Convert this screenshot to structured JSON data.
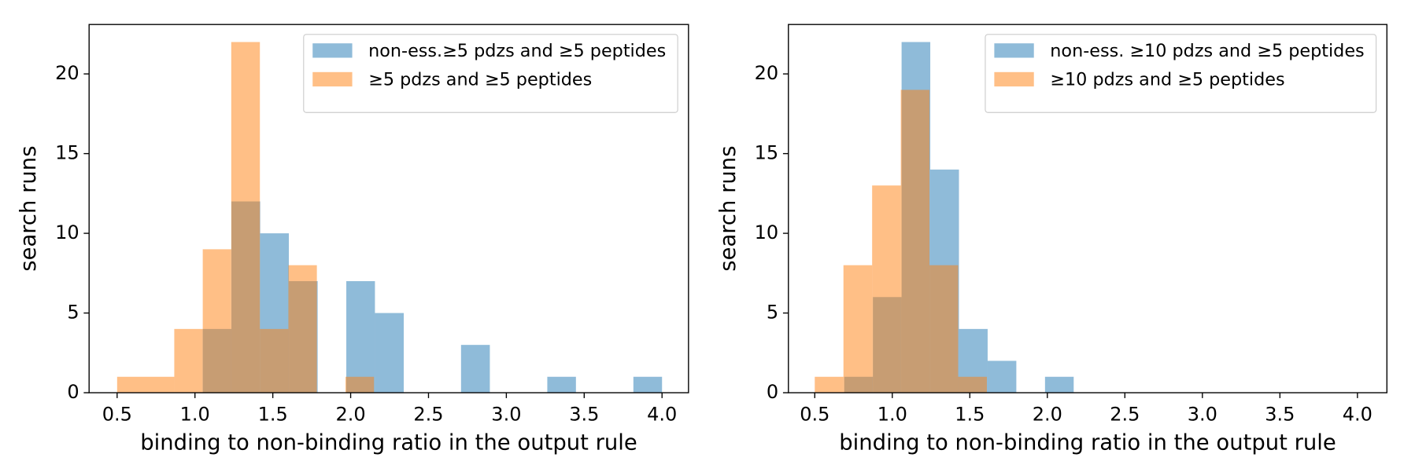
{
  "chart_data": [
    {
      "type": "histogram",
      "xlabel": "binding to non-binding ratio in the output rule",
      "ylabel": "search runs",
      "xlim": [
        0.32,
        4.17
      ],
      "ylim": [
        0,
        23.1
      ],
      "xticks": [
        {
          "value": 0.5,
          "label": "0.5"
        },
        {
          "value": 1.0,
          "label": "1.0"
        },
        {
          "value": 1.5,
          "label": "1.5"
        },
        {
          "value": 2.0,
          "label": "2.0"
        },
        {
          "value": 2.5,
          "label": "2.5"
        },
        {
          "value": 3.0,
          "label": "3.0"
        },
        {
          "value": 3.5,
          "label": "3.5"
        },
        {
          "value": 4.0,
          "label": "4.0"
        }
      ],
      "yticks": [
        0,
        5,
        10,
        15,
        20
      ],
      "legend": "upper right",
      "alpha": 0.5,
      "series": [
        {
          "name": "non-ess.≥5 pdzs and ≥5 peptides",
          "color": "#1f77b4",
          "bins": [
            1.05,
            1.234,
            1.419,
            1.603,
            1.788,
            1.972,
            2.156,
            2.341,
            2.525,
            2.709,
            2.894,
            3.078,
            3.263,
            3.447,
            3.631,
            3.816,
            4.0
          ],
          "values": [
            4,
            12,
            10,
            7,
            0,
            7,
            5,
            0,
            0,
            3,
            0,
            0,
            1,
            0,
            0,
            1
          ]
        },
        {
          "name": "≥5 pdzs and ≥5 peptides",
          "color": "#ff7f0e",
          "bins": [
            0.5,
            0.683,
            0.867,
            1.05,
            1.233,
            1.417,
            1.6,
            1.783,
            1.967,
            2.15
          ],
          "values": [
            1,
            1,
            4,
            9,
            22,
            4,
            8,
            0,
            1
          ]
        }
      ]
    },
    {
      "type": "histogram",
      "xlabel": "binding to non-binding ratio in the output rule",
      "ylabel": "search runs",
      "xlim": [
        0.33,
        4.19
      ],
      "ylim": [
        0,
        23.1
      ],
      "xticks": [
        {
          "value": 0.5,
          "label": "0.5"
        },
        {
          "value": 1.0,
          "label": "1.0"
        },
        {
          "value": 1.5,
          "label": "1.5"
        },
        {
          "value": 2.0,
          "label": "2.0"
        },
        {
          "value": 2.5,
          "label": "2.5"
        },
        {
          "value": 3.0,
          "label": "3.0"
        },
        {
          "value": 3.5,
          "label": "3.5"
        },
        {
          "value": 4.0,
          "label": "4.0"
        }
      ],
      "yticks": [
        0,
        5,
        10,
        15,
        20
      ],
      "legend": "upper right",
      "alpha": 0.5,
      "series": [
        {
          "name": "non-ess. ≥10 pdzs and ≥5 peptides",
          "color": "#1f77b4",
          "bins": [
            0.69,
            0.875,
            1.06,
            1.245,
            1.43,
            1.615,
            1.8,
            1.985,
            2.17
          ],
          "values": [
            1,
            6,
            22,
            14,
            4,
            2,
            0,
            1
          ]
        },
        {
          "name": "≥10 pdzs and ≥5 peptides",
          "color": "#ff7f0e",
          "bins": [
            0.5,
            0.685,
            0.87,
            1.055,
            1.24,
            1.425,
            1.61
          ],
          "values": [
            1,
            8,
            13,
            19,
            8,
            1
          ]
        }
      ]
    }
  ]
}
